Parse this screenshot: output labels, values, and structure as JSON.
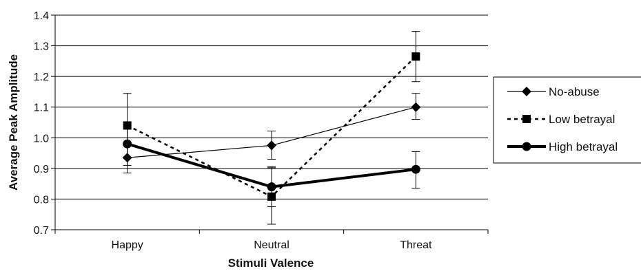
{
  "chart_data": {
    "type": "line",
    "title": "",
    "xlabel": "Stimuli  Valence",
    "ylabel": "Average Peak Amplitude",
    "categories": [
      "Happy",
      "Neutral",
      "Threat"
    ],
    "ylim": [
      0.7,
      1.4
    ],
    "yticks": [
      "0.7",
      "0.8",
      "0.9",
      "1.0",
      "1.1",
      "1.2",
      "1.3",
      "1.4"
    ],
    "grid": true,
    "legend_position": "right",
    "series": [
      {
        "name": "No-abuse",
        "marker": "diamond",
        "line_style": "solid-thin",
        "color": "#000000",
        "values": [
          0.935,
          0.975,
          1.1
        ],
        "error_low": [
          0.885,
          0.93,
          1.06
        ],
        "error_high": [
          0.985,
          1.022,
          1.145
        ]
      },
      {
        "name": "Low betrayal",
        "marker": "square",
        "line_style": "dashed",
        "color": "#000000",
        "values": [
          1.04,
          0.808,
          1.265
        ],
        "error_low": [
          0.935,
          0.718,
          1.183
        ],
        "error_high": [
          1.145,
          0.902,
          1.347
        ]
      },
      {
        "name": "High betrayal",
        "marker": "circle",
        "line_style": "solid-thick",
        "color": "#000000",
        "values": [
          0.98,
          0.84,
          0.897
        ],
        "error_low": [
          0.91,
          0.775,
          0.835
        ],
        "error_high": [
          1.05,
          0.905,
          0.955
        ]
      }
    ]
  }
}
